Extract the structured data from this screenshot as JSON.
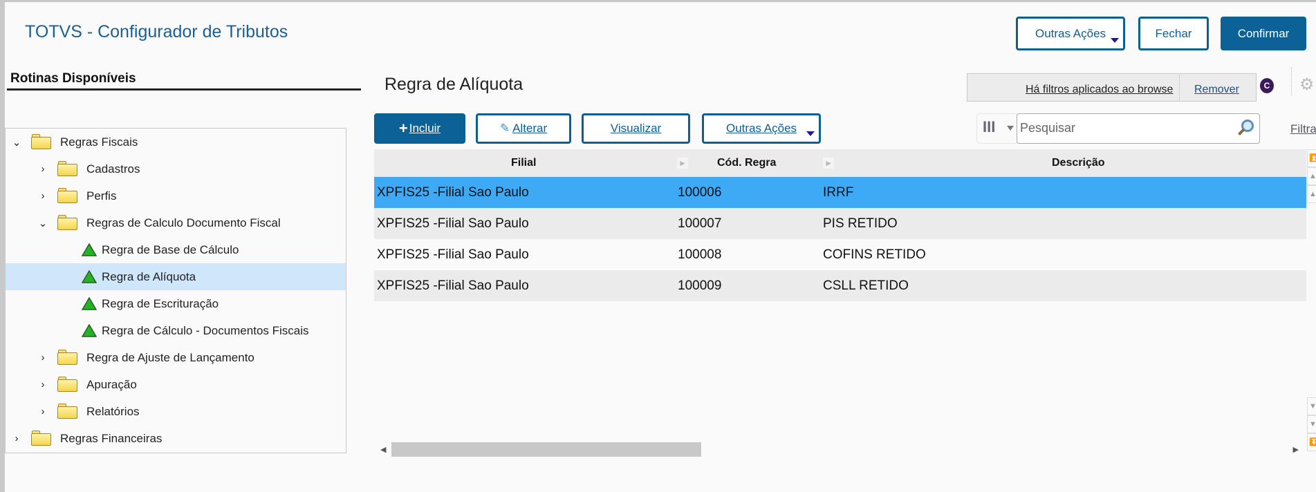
{
  "app": {
    "title": "TOTVS - Configurador de Tributos"
  },
  "header_actions": {
    "other_actions": "Outras Ações",
    "close": "Fechar",
    "confirm": "Confirmar"
  },
  "sidebar": {
    "title": "Rotinas Disponíveis",
    "tree": [
      {
        "label": "Regras Fiscais",
        "level": 0,
        "type": "folder",
        "expanded": true
      },
      {
        "label": "Cadastros",
        "level": 1,
        "type": "folder",
        "expanded": false
      },
      {
        "label": "Perfis",
        "level": 1,
        "type": "folder",
        "expanded": false
      },
      {
        "label": "Regras de Calculo Documento Fiscal",
        "level": 1,
        "type": "folder",
        "expanded": true
      },
      {
        "label": "Regra de Base de Cálculo",
        "level": 2,
        "type": "routine"
      },
      {
        "label": "Regra de Alíquota",
        "level": 2,
        "type": "routine",
        "selected": true
      },
      {
        "label": "Regra de Escrituração",
        "level": 2,
        "type": "routine"
      },
      {
        "label": "Regra de Cálculo - Documentos Fiscais",
        "level": 2,
        "type": "routine"
      },
      {
        "label": "Regra de Ajuste de Lançamento",
        "level": 1,
        "type": "folder",
        "expanded": false
      },
      {
        "label": "Apuração",
        "level": 1,
        "type": "folder",
        "expanded": false
      },
      {
        "label": "Relatórios",
        "level": 1,
        "type": "folder",
        "expanded": false
      },
      {
        "label": "Regras Financeiras",
        "level": 0,
        "type": "folder",
        "expanded": false
      }
    ]
  },
  "main": {
    "title": "Regra de Alíquota",
    "filter_notice": "Há filtros aplicados ao browse",
    "filter_remove": "Remover",
    "filter_link": "Filtrar",
    "toolbar": {
      "include": "Incluir",
      "edit": "Alterar",
      "view": "Visualizar",
      "other_actions": "Outras Ações"
    },
    "search": {
      "placeholder": "Pesquisar",
      "value": ""
    },
    "columns": [
      "Filial",
      "Cód. Regra",
      "Descrição"
    ],
    "rows": [
      {
        "filial": "XPFIS25 -Filial Sao Paulo",
        "codigo": "100006",
        "descricao": "IRRF"
      },
      {
        "filial": "XPFIS25 -Filial Sao Paulo",
        "codigo": "100007",
        "descricao": "PIS RETIDO"
      },
      {
        "filial": "XPFIS25 -Filial Sao Paulo",
        "codigo": "100008",
        "descricao": "COFINS RETIDO"
      },
      {
        "filial": "XPFIS25 -Filial Sao Paulo",
        "codigo": "100009",
        "descricao": "CSLL RETIDO"
      }
    ],
    "selected_row": 0
  },
  "colors": {
    "brand": "#0c6296",
    "selected_row": "#3ea9f5",
    "selected_tree": "#cfe6fb",
    "title": "#1a5f95"
  }
}
